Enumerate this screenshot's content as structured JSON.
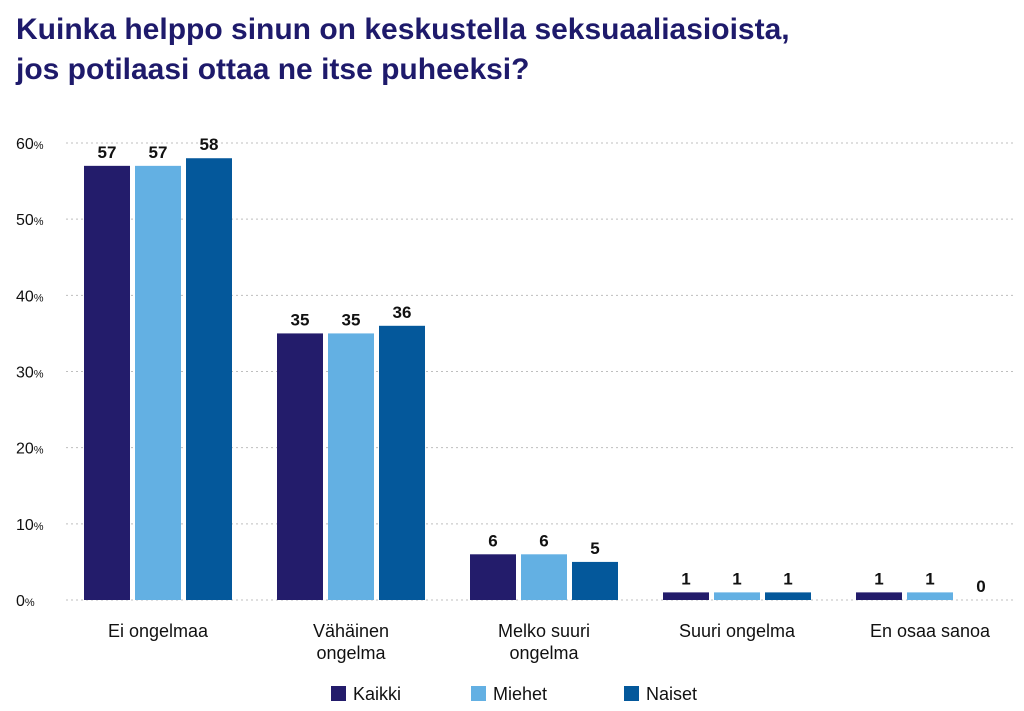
{
  "title": {
    "line1": "Kuinka helppo sinun on keskustella seksuaaliasioista,",
    "line2": "jos potilaasi ottaa ne itse puheeksi?"
  },
  "chart_data": {
    "type": "bar",
    "title": "Kuinka helppo sinun on keskustella seksuaaliasioista, jos potilaasi ottaa ne itse puheeksi?",
    "categories": [
      [
        "Ei ongelmaa"
      ],
      [
        "Vähäinen",
        "ongelma"
      ],
      [
        "Melko suuri",
        "ongelma"
      ],
      [
        "Suuri ongelma"
      ],
      [
        "En osaa sanoa"
      ]
    ],
    "series": [
      {
        "name": "Kaikki",
        "color": "#231c6b",
        "values": [
          57,
          35,
          6,
          1,
          1
        ]
      },
      {
        "name": "Miehet",
        "color": "#63b0e3",
        "values": [
          57,
          35,
          6,
          1,
          1
        ]
      },
      {
        "name": "Naiset",
        "color": "#04589b",
        "values": [
          58,
          36,
          5,
          1,
          0
        ]
      }
    ],
    "y_ticks": [
      0,
      10,
      20,
      30,
      40,
      50,
      60
    ],
    "y_unit": "%",
    "ylim": [
      0,
      60
    ],
    "grid": "dotted horizontal",
    "legend_position": "bottom"
  }
}
